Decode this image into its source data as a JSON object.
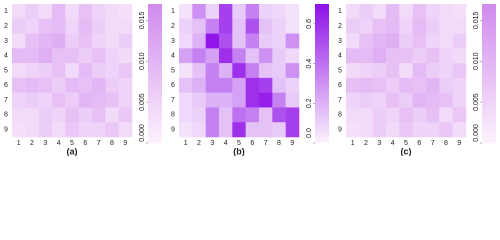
{
  "chart_data": [
    {
      "type": "heatmap",
      "xlabel": "(a)",
      "x": [
        1,
        2,
        3,
        4,
        5,
        6,
        7,
        8,
        9
      ],
      "y": [
        1,
        2,
        3,
        4,
        5,
        6,
        7,
        8,
        9
      ],
      "values": [
        [
          0.004,
          0.006,
          0.004,
          0.009,
          0.004,
          0.008,
          0.005,
          0.004,
          0.003
        ],
        [
          0.006,
          0.005,
          0.008,
          0.009,
          0.005,
          0.009,
          0.006,
          0.004,
          0.004
        ],
        [
          0.004,
          0.008,
          0.01,
          0.011,
          0.006,
          0.008,
          0.005,
          0.004,
          0.006
        ],
        [
          0.009,
          0.009,
          0.011,
          0.008,
          0.008,
          0.006,
          0.008,
          0.005,
          0.004
        ],
        [
          0.004,
          0.005,
          0.006,
          0.008,
          0.004,
          0.009,
          0.006,
          0.005,
          0.007
        ],
        [
          0.008,
          0.009,
          0.008,
          0.006,
          0.009,
          0.008,
          0.01,
          0.006,
          0.005
        ],
        [
          0.005,
          0.006,
          0.005,
          0.008,
          0.006,
          0.01,
          0.009,
          0.008,
          0.005
        ],
        [
          0.004,
          0.004,
          0.006,
          0.005,
          0.008,
          0.006,
          0.008,
          0.004,
          0.007
        ],
        [
          0.003,
          0.004,
          0.006,
          0.004,
          0.007,
          0.005,
          0.005,
          0.007,
          0.004
        ]
      ],
      "colormap": [
        "#fcf2fc",
        "#d08aee"
      ],
      "clim": [
        0,
        0.017
      ],
      "cticks": [
        {
          "value": 0,
          "label": "0.000"
        },
        {
          "value": 0.005,
          "label": "0.005"
        },
        {
          "value": 0.01,
          "label": "0.010"
        },
        {
          "value": 0.015,
          "label": "0.015"
        }
      ]
    },
    {
      "type": "heatmap",
      "xlabel": "(b)",
      "x": [
        1,
        2,
        3,
        4,
        5,
        6,
        7,
        8,
        9
      ],
      "y": [
        1,
        2,
        3,
        4,
        5,
        6,
        7,
        8,
        9
      ],
      "values": [
        [
          0.05,
          0.3,
          0.1,
          0.55,
          0.12,
          0.35,
          0.1,
          0.08,
          0.05
        ],
        [
          0.1,
          0.15,
          0.35,
          0.55,
          0.15,
          0.5,
          0.15,
          0.1,
          0.05
        ],
        [
          0.08,
          0.2,
          0.68,
          0.5,
          0.15,
          0.35,
          0.12,
          0.1,
          0.3
        ],
        [
          0.25,
          0.35,
          0.25,
          0.6,
          0.35,
          0.15,
          0.3,
          0.12,
          0.08
        ],
        [
          0.05,
          0.15,
          0.35,
          0.2,
          0.6,
          0.35,
          0.15,
          0.12,
          0.3
        ],
        [
          0.15,
          0.2,
          0.35,
          0.35,
          0.25,
          0.6,
          0.55,
          0.15,
          0.1
        ],
        [
          0.08,
          0.12,
          0.2,
          0.2,
          0.25,
          0.6,
          0.65,
          0.35,
          0.12
        ],
        [
          0.08,
          0.1,
          0.35,
          0.15,
          0.4,
          0.35,
          0.15,
          0.5,
          0.55
        ],
        [
          0.05,
          0.08,
          0.35,
          0.15,
          0.6,
          0.15,
          0.15,
          0.12,
          0.55
        ]
      ],
      "colormap": [
        "#fcf2fc",
        "#8e10e8"
      ],
      "clim": [
        0,
        0.7
      ],
      "cticks": [
        {
          "value": 0,
          "label": "0.0"
        },
        {
          "value": 0.2,
          "label": "0.2"
        },
        {
          "value": 0.4,
          "label": "0.4"
        },
        {
          "value": 0.6,
          "label": "0.6"
        }
      ]
    },
    {
      "type": "heatmap",
      "xlabel": "(c)",
      "x": [
        1,
        2,
        3,
        4,
        5,
        6,
        7,
        8,
        9
      ],
      "y": [
        1,
        2,
        3,
        4,
        5,
        6,
        7,
        8,
        9
      ],
      "values": [
        [
          0.004,
          0.006,
          0.004,
          0.009,
          0.004,
          0.008,
          0.005,
          0.004,
          0.003
        ],
        [
          0.006,
          0.005,
          0.008,
          0.009,
          0.005,
          0.009,
          0.006,
          0.004,
          0.004
        ],
        [
          0.004,
          0.008,
          0.01,
          0.011,
          0.006,
          0.008,
          0.005,
          0.004,
          0.006
        ],
        [
          0.009,
          0.009,
          0.011,
          0.008,
          0.008,
          0.006,
          0.008,
          0.005,
          0.004
        ],
        [
          0.004,
          0.005,
          0.006,
          0.008,
          0.004,
          0.009,
          0.006,
          0.005,
          0.007
        ],
        [
          0.008,
          0.009,
          0.008,
          0.006,
          0.009,
          0.008,
          0.01,
          0.006,
          0.005
        ],
        [
          0.005,
          0.006,
          0.005,
          0.008,
          0.006,
          0.01,
          0.009,
          0.008,
          0.005
        ],
        [
          0.004,
          0.004,
          0.006,
          0.005,
          0.008,
          0.006,
          0.008,
          0.004,
          0.007
        ],
        [
          0.003,
          0.004,
          0.006,
          0.004,
          0.007,
          0.005,
          0.005,
          0.007,
          0.004
        ]
      ],
      "colormap": [
        "#fcf2fc",
        "#d08aee"
      ],
      "clim": [
        0,
        0.017
      ],
      "cticks": [
        {
          "value": 0,
          "label": "0.000"
        },
        {
          "value": 0.005,
          "label": "0.005"
        },
        {
          "value": 0.01,
          "label": "0.010"
        },
        {
          "value": 0.015,
          "label": "0.015"
        }
      ]
    }
  ]
}
